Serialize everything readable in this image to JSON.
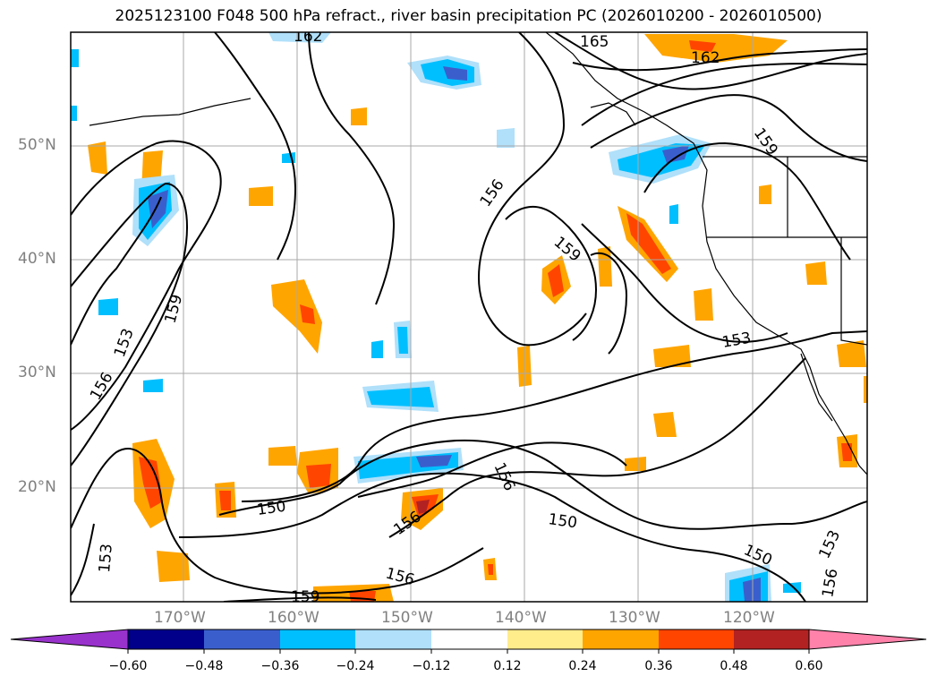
{
  "title": "2025123100 F048 500 hPa refract., river basin precipitation PC (2026010200 - 2026010500)",
  "map": {
    "lat_labels": [
      "50°N",
      "40°N",
      "30°N",
      "20°N"
    ],
    "lon_labels": [
      "170°W",
      "160°W",
      "150°W",
      "140°W",
      "130°W",
      "120°W"
    ],
    "contour_labels": [
      "162",
      "165",
      "162",
      "159",
      "156",
      "159",
      "159",
      "153",
      "156",
      "153",
      "150",
      "156",
      "156",
      "150",
      "150",
      "153",
      "156",
      "153",
      "159",
      "156"
    ]
  },
  "colorbar": {
    "ticks": [
      "−0.60",
      "−0.48",
      "−0.36",
      "−0.24",
      "−0.12",
      "0.12",
      "0.24",
      "0.36",
      "0.48",
      "0.60"
    ],
    "colors": [
      "#9932cc",
      "#00008b",
      "#3a5fcd",
      "#00bfff",
      "#b0e0fa",
      "#ffffff",
      "#ffec8b",
      "#ffa500",
      "#ff4500",
      "#b22222",
      "#ff82ab"
    ]
  }
}
